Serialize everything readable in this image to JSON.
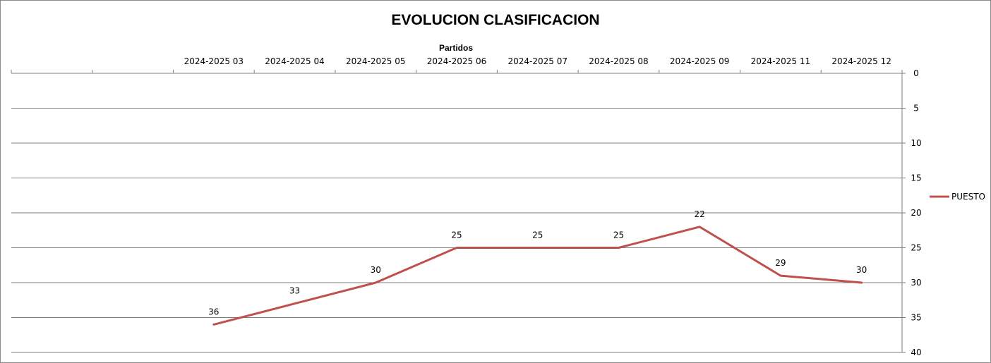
{
  "colors": {
    "series": "#c0504d",
    "gridline": "#7f7f7f",
    "axis": "#7f7f7f",
    "text": "#000000",
    "background": "#ffffff"
  },
  "chart_data": {
    "type": "line",
    "title": "EVOLUCION CLASIFICACION",
    "xlabel": "Partidos",
    "ylabel": "",
    "x_axis_position": "top",
    "y_axis_position": "right",
    "y_reversed": true,
    "ylim": [
      0,
      40
    ],
    "y_ticks": [
      0,
      5,
      10,
      15,
      20,
      25,
      30,
      35,
      40
    ],
    "grid": true,
    "legend_position": "right",
    "categories": [
      "",
      "",
      "2024-2025 03",
      "2024-2025 04",
      "2024-2025 05",
      "2024-2025 06",
      "2024-2025 07",
      "2024-2025 08",
      "2024-2025 09",
      "2024-2025 11",
      "2024-2025 12"
    ],
    "series": [
      {
        "name": "PUESTO",
        "values": [
          null,
          null,
          36,
          33,
          30,
          25,
          25,
          25,
          22,
          29,
          30
        ]
      }
    ]
  }
}
